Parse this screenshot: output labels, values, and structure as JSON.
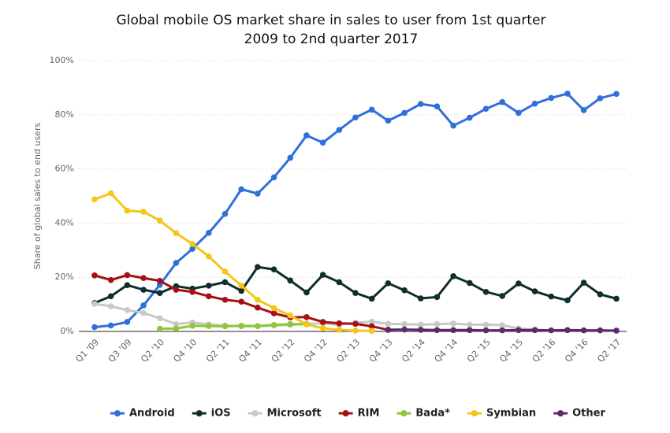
{
  "chart_data": {
    "type": "line",
    "title": "Global mobile OS market share in sales to user from 1st quarter 2009 to 2nd quarter 2017",
    "y_label": "Share of global sales to end users",
    "categories": [
      "Q1 '09",
      null,
      "Q3 '09",
      null,
      "Q2 '10",
      null,
      "Q4 '10",
      null,
      "Q2 '11",
      null,
      "Q4 '11",
      null,
      "Q2 '12",
      null,
      "Q4 '12",
      null,
      "Q2 '13",
      null,
      "Q4 '13",
      null,
      "Q2 '14",
      null,
      "Q4 '14",
      null,
      "Q2 '15",
      null,
      "Q4 '15",
      null,
      "Q2 '16",
      null,
      "Q4 '16",
      null,
      "Q2 '17"
    ],
    "ylim": [
      0,
      100
    ],
    "yticks": [
      {
        "value": 0,
        "label": "0%"
      },
      {
        "value": 20,
        "label": "20%"
      },
      {
        "value": 40,
        "label": "40%"
      },
      {
        "value": 60,
        "label": "60%"
      },
      {
        "value": 80,
        "label": "80%"
      },
      {
        "value": 100,
        "label": "100%"
      }
    ],
    "grid": true,
    "legend": "bottom",
    "series": [
      {
        "name": "Android",
        "color": "#2f6fdb",
        "values": [
          1.6,
          2.2,
          3.5,
          9.6,
          17.2,
          25.3,
          30.5,
          36.4,
          43.4,
          52.5,
          50.9,
          56.9,
          64.1,
          72.4,
          69.7,
          74.4,
          79.0,
          81.9,
          77.8,
          80.7,
          84.0,
          83.1,
          76.0,
          78.9,
          82.2,
          84.7,
          80.7,
          84.1,
          86.2,
          87.8,
          81.7,
          86.1,
          87.7
        ]
      },
      {
        "name": "iOS",
        "color": "#0f2e2e",
        "values": [
          10.5,
          13.0,
          17.1,
          15.4,
          14.2,
          16.7,
          15.8,
          16.9,
          18.2,
          15.0,
          23.8,
          22.9,
          18.8,
          14.4,
          20.9,
          18.2,
          14.2,
          12.1,
          17.8,
          15.2,
          12.2,
          12.7,
          20.4,
          17.9,
          14.6,
          13.1,
          17.7,
          14.8,
          12.9,
          11.5,
          18.0,
          13.7,
          12.1
        ]
      },
      {
        "name": "Microsoft",
        "color": "#c8c8c8",
        "values": [
          10.2,
          9.3,
          7.9,
          6.8,
          4.9,
          2.7,
          3.3,
          2.6,
          2.2,
          1.9,
          1.9,
          2.2,
          2.4,
          2.9,
          2.9,
          2.5,
          3.2,
          3.6,
          2.8,
          2.7,
          2.5,
          2.7,
          2.9,
          2.5,
          2.5,
          2.3,
          1.1,
          0.7,
          null,
          null,
          null,
          null,
          null
        ]
      },
      {
        "name": "RIM",
        "color": "#a50f15",
        "values": [
          20.7,
          19.0,
          20.8,
          19.7,
          18.7,
          15.4,
          14.6,
          13.0,
          11.7,
          11.0,
          8.8,
          6.7,
          5.2,
          5.3,
          3.5,
          3.0,
          2.8,
          1.9,
          0.6,
          null,
          null,
          null,
          null,
          null,
          null,
          null,
          null,
          null,
          null,
          null,
          null,
          null,
          null
        ]
      },
      {
        "name": "Bada*",
        "color": "#8dc63f",
        "values": [
          null,
          null,
          null,
          null,
          1.0,
          1.1,
          2.1,
          2.0,
          1.9,
          2.1,
          2.0,
          2.4,
          2.7,
          2.7,
          null,
          null,
          null,
          null,
          null,
          null,
          null,
          null,
          null,
          null,
          null,
          null,
          null,
          null,
          null,
          null,
          null,
          null,
          null
        ]
      },
      {
        "name": "Symbian",
        "color": "#f5c518",
        "values": [
          48.8,
          51.0,
          44.6,
          44.2,
          40.9,
          36.3,
          32.3,
          27.7,
          22.1,
          16.9,
          11.7,
          8.6,
          5.9,
          2.6,
          1.2,
          0.6,
          0.3,
          0.2,
          null,
          null,
          null,
          null,
          null,
          null,
          null,
          null,
          null,
          null,
          null,
          null,
          null,
          null,
          null
        ]
      },
      {
        "name": "Other",
        "color": "#5b2a6f",
        "values": [
          null,
          null,
          null,
          null,
          null,
          null,
          null,
          null,
          null,
          null,
          null,
          null,
          null,
          null,
          null,
          null,
          null,
          null,
          0.6,
          0.7,
          0.6,
          0.5,
          0.5,
          0.5,
          0.4,
          0.4,
          0.5,
          0.5,
          0.4,
          0.5,
          0.4,
          0.4,
          0.3
        ]
      }
    ]
  }
}
